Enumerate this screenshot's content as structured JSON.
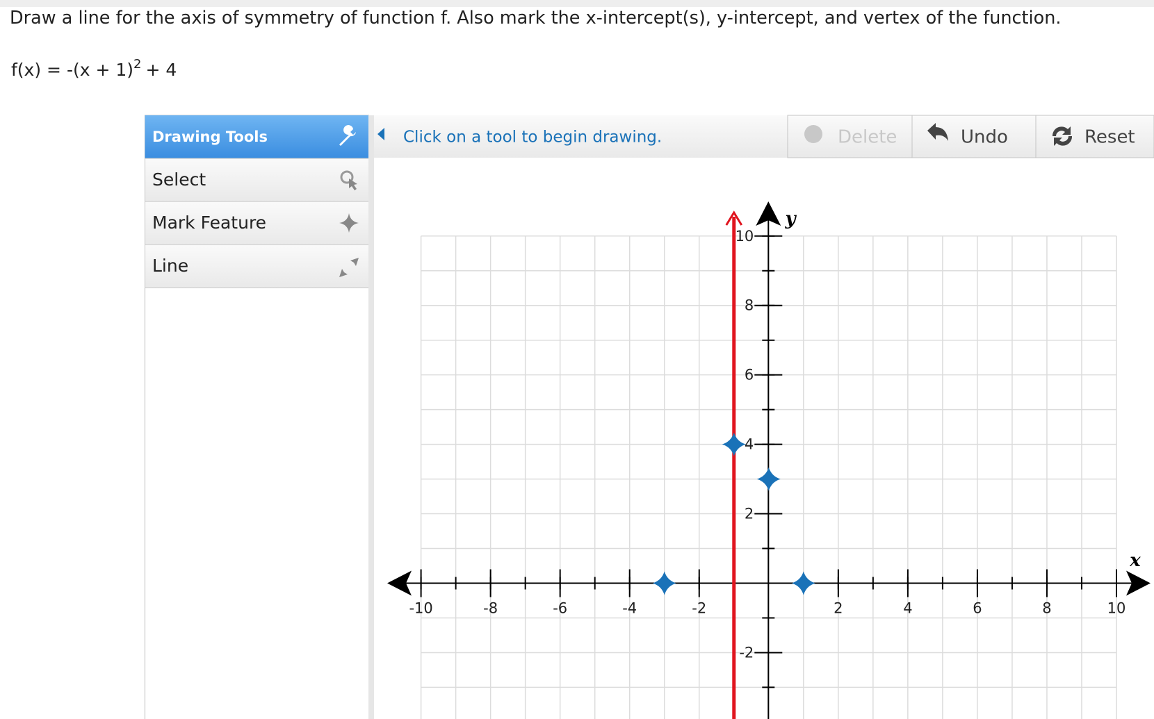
{
  "question": {
    "prompt": "Draw a line for the axis of symmetry of function f. Also mark the x-intercept(s), y-intercept, and vertex of the function.",
    "function_base": "f(x) = -(x + 1)",
    "function_exponent": "2",
    "function_tail": "+ 4"
  },
  "toolbar": {
    "title": "Drawing Tools",
    "tools": [
      "Select",
      "Mark Feature",
      "Line"
    ],
    "status": "Click on a tool to begin drawing.",
    "buttons": [
      "Delete",
      "Undo",
      "Reset"
    ]
  },
  "graph": {
    "x_label": "x",
    "y_label": "y",
    "xlim": [
      -10,
      10
    ],
    "ylim": [
      -4,
      10
    ],
    "xticks": [
      -10,
      -8,
      -6,
      -4,
      -2,
      2,
      4,
      6,
      8,
      10
    ],
    "yticks": [
      -2,
      2,
      4,
      6,
      8,
      10
    ],
    "axis_of_symmetry": {
      "x": -1,
      "color": "#e0141e"
    },
    "features": [
      {
        "x": -1,
        "y": 4
      },
      {
        "x": 0,
        "y": 3
      },
      {
        "x": -3,
        "y": 0
      },
      {
        "x": 1,
        "y": 0
      }
    ],
    "feature_color": "#1a72b8"
  }
}
